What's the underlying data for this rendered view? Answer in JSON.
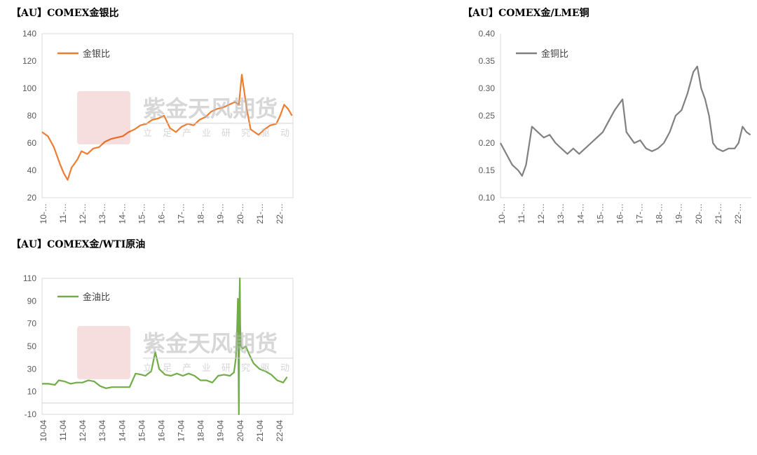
{
  "colors": {
    "silver": "#ED7D31",
    "copper": "#808080",
    "oil": "#70AD47",
    "axis": "#d9d9d9",
    "watermark": "#c00000"
  },
  "watermark": {
    "name": "紫金天风期货",
    "slogan": [
      "立",
      "足",
      "产",
      "业",
      "研",
      "究",
      "驱",
      "动"
    ]
  },
  "chart_data": [
    {
      "type": "line",
      "title": "【AU】COMEX金银比",
      "ylim": [
        20,
        140
      ],
      "yticks": [
        20,
        40,
        60,
        80,
        100,
        120,
        140
      ],
      "x_tick_labels": [
        "10-…",
        "11-…",
        "12-…",
        "13-…",
        "14-…",
        "15-…",
        "16-…",
        "17-…",
        "18-…",
        "19-…",
        "20-…",
        "21-…",
        "22-…"
      ],
      "legend": "top-left",
      "series": [
        {
          "name": "金银比",
          "x": [
            2010.0,
            2010.3,
            2010.6,
            2010.9,
            2011.1,
            2011.3,
            2011.5,
            2011.8,
            2012.0,
            2012.3,
            2012.6,
            2012.9,
            2013.2,
            2013.5,
            2013.8,
            2014.1,
            2014.4,
            2014.7,
            2015.0,
            2015.3,
            2015.6,
            2015.9,
            2016.2,
            2016.5,
            2016.8,
            2017.1,
            2017.4,
            2017.7,
            2018.0,
            2018.3,
            2018.6,
            2018.9,
            2019.2,
            2019.5,
            2019.8,
            2020.0,
            2020.15,
            2020.25,
            2020.4,
            2020.6,
            2020.8,
            2021.0,
            2021.3,
            2021.6,
            2021.9,
            2022.1,
            2022.3,
            2022.5,
            2022.7
          ],
          "values": [
            68,
            65,
            57,
            45,
            38,
            33,
            42,
            48,
            54,
            52,
            56,
            57,
            61,
            63,
            64,
            65,
            68,
            70,
            73,
            74,
            77,
            78,
            80,
            71,
            68,
            72,
            74,
            73,
            77,
            79,
            83,
            85,
            86,
            88,
            90,
            88,
            110,
            100,
            85,
            70,
            68,
            66,
            70,
            73,
            74,
            80,
            88,
            85,
            80
          ]
        }
      ]
    },
    {
      "type": "line",
      "title": "【AU】COMEX金/LME铜",
      "ylim": [
        0.1,
        0.4
      ],
      "yticks": [
        0.1,
        0.15,
        0.2,
        0.25,
        0.3,
        0.35,
        0.4
      ],
      "x_tick_labels": [
        "10-…",
        "11-…",
        "12-…",
        "13-…",
        "14-…",
        "15-…",
        "16-…",
        "17-…",
        "18-…",
        "19-…",
        "20-…",
        "21-…",
        "22-…"
      ],
      "legend": "top-left",
      "series": [
        {
          "name": "金铜比",
          "x": [
            2010.0,
            2010.3,
            2010.6,
            2010.9,
            2011.1,
            2011.3,
            2011.6,
            2011.9,
            2012.2,
            2012.5,
            2012.8,
            2013.1,
            2013.4,
            2013.7,
            2014.0,
            2014.3,
            2014.6,
            2014.9,
            2015.2,
            2015.5,
            2015.8,
            2016.0,
            2016.2,
            2016.4,
            2016.6,
            2016.8,
            2017.1,
            2017.4,
            2017.7,
            2018.0,
            2018.3,
            2018.6,
            2018.9,
            2019.2,
            2019.5,
            2019.8,
            2020.0,
            2020.2,
            2020.4,
            2020.6,
            2020.8,
            2021.0,
            2021.3,
            2021.6,
            2021.9,
            2022.1,
            2022.3,
            2022.5,
            2022.7
          ],
          "values": [
            0.2,
            0.18,
            0.16,
            0.15,
            0.14,
            0.16,
            0.23,
            0.22,
            0.21,
            0.215,
            0.2,
            0.19,
            0.18,
            0.19,
            0.18,
            0.19,
            0.2,
            0.21,
            0.22,
            0.24,
            0.26,
            0.27,
            0.28,
            0.22,
            0.21,
            0.2,
            0.205,
            0.19,
            0.185,
            0.19,
            0.2,
            0.22,
            0.25,
            0.26,
            0.29,
            0.33,
            0.34,
            0.3,
            0.28,
            0.25,
            0.2,
            0.19,
            0.185,
            0.19,
            0.19,
            0.2,
            0.23,
            0.22,
            0.215
          ]
        }
      ]
    },
    {
      "type": "line",
      "title": "【AU】COMEX金/WTI原油",
      "ylim": [
        -10,
        110
      ],
      "yticks": [
        -10,
        10,
        30,
        50,
        70,
        90,
        110
      ],
      "x_tick_labels": [
        "10-04",
        "11-04",
        "12-04",
        "13-04",
        "14-04",
        "15-04",
        "16-04",
        "17-04",
        "18-04",
        "19-04",
        "20-04",
        "21-04",
        "22-04"
      ],
      "legend": "top-left",
      "series": [
        {
          "name": "金油比",
          "x": [
            2010.25,
            2010.6,
            2010.9,
            2011.1,
            2011.4,
            2011.7,
            2012.0,
            2012.3,
            2012.6,
            2012.9,
            2013.2,
            2013.5,
            2013.8,
            2014.1,
            2014.4,
            2014.7,
            2015.0,
            2015.3,
            2015.5,
            2015.8,
            2016.0,
            2016.2,
            2016.5,
            2016.8,
            2017.1,
            2017.4,
            2017.7,
            2018.0,
            2018.3,
            2018.6,
            2018.9,
            2019.2,
            2019.5,
            2019.8,
            2020.0,
            2020.1,
            2020.15,
            2020.2,
            2020.25,
            2020.28,
            2020.3,
            2020.32,
            2020.35,
            2020.45,
            2020.6,
            2020.8,
            2021.0,
            2021.3,
            2021.6,
            2021.9,
            2022.2,
            2022.5,
            2022.7
          ],
          "values": [
            17,
            17,
            16,
            20,
            19,
            17,
            18,
            18,
            20,
            19,
            15,
            13,
            14,
            14,
            14,
            14,
            26,
            25,
            24,
            28,
            45,
            30,
            25,
            24,
            26,
            24,
            26,
            24,
            20,
            20,
            18,
            24,
            25,
            24,
            27,
            40,
            60,
            92,
            -10,
            90,
            110,
            70,
            50,
            48,
            50,
            42,
            35,
            30,
            28,
            25,
            20,
            18,
            23
          ]
        }
      ]
    }
  ]
}
